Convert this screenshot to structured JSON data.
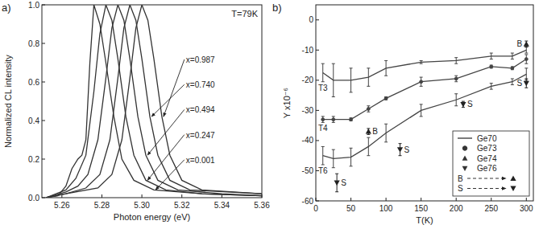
{
  "chart_data": [
    {
      "type": "line",
      "panel_label": "a)",
      "x_label": "Photon energy (eV)",
      "y_label": "Normalized CL intensity",
      "annotation": "T=79K",
      "xlim": [
        5.25,
        5.36
      ],
      "ylim": [
        0,
        1
      ],
      "xticks": [
        5.26,
        5.28,
        {
          "value": 5.3,
          "label": "5.30"
        },
        5.32,
        5.34,
        5.36
      ],
      "yticks": [
        {
          "value": 0,
          "label": "0.0"
        },
        0.2,
        0.4,
        0.6,
        0.8,
        {
          "value": 1,
          "label": "1.0"
        }
      ],
      "series": [
        {
          "name": "x=0.987",
          "color": "#333333",
          "line_style": "solid",
          "x": [
            5.252,
            5.262,
            5.278,
            5.285,
            5.29,
            5.294,
            5.297,
            5.3,
            5.303,
            5.306,
            5.31,
            5.314,
            5.32,
            5.33,
            5.36
          ],
          "values": [
            0.0,
            0.02,
            0.05,
            0.12,
            0.3,
            0.62,
            0.88,
            1.0,
            0.92,
            0.72,
            0.42,
            0.22,
            0.09,
            0.04,
            0.02
          ]
        },
        {
          "name": "x=0.740",
          "color": "#333333",
          "line_style": "solid",
          "x": [
            5.252,
            5.262,
            5.272,
            5.279,
            5.284,
            5.288,
            5.291,
            5.294,
            5.297,
            5.3,
            5.304,
            5.308,
            5.314,
            5.324,
            5.36
          ],
          "values": [
            0.0,
            0.02,
            0.05,
            0.12,
            0.3,
            0.62,
            0.88,
            1.0,
            0.92,
            0.72,
            0.42,
            0.22,
            0.09,
            0.04,
            0.02
          ]
        },
        {
          "name": "x=0.494",
          "color": "#333333",
          "line_style": "solid",
          "x": [
            5.252,
            5.262,
            5.268,
            5.273,
            5.278,
            5.282,
            5.285,
            5.288,
            5.291,
            5.294,
            5.298,
            5.302,
            5.308,
            5.318,
            5.34,
            5.36
          ],
          "values": [
            0.0,
            0.03,
            0.06,
            0.12,
            0.3,
            0.62,
            0.88,
            1.0,
            0.92,
            0.72,
            0.42,
            0.22,
            0.09,
            0.04,
            0.02,
            0.01
          ]
        },
        {
          "name": "x=0.247",
          "color": "#333333",
          "line_style": "solid",
          "x": [
            5.252,
            5.262,
            5.267,
            5.272,
            5.276,
            5.279,
            5.282,
            5.285,
            5.288,
            5.292,
            5.296,
            5.302,
            5.312,
            5.33,
            5.36
          ],
          "values": [
            0.0,
            0.04,
            0.1,
            0.22,
            0.55,
            0.85,
            1.0,
            0.92,
            0.72,
            0.42,
            0.22,
            0.09,
            0.04,
            0.02,
            0.01
          ]
        },
        {
          "name": "x=0.001",
          "color": "#333333",
          "line_style": "solid",
          "x": [
            5.252,
            5.258,
            5.262,
            5.265,
            5.268,
            5.27,
            5.272,
            5.274,
            5.276,
            5.279,
            5.282,
            5.286,
            5.29,
            5.296,
            5.306,
            5.33,
            5.36
          ],
          "values": [
            0.0,
            0.01,
            0.06,
            0.15,
            0.2,
            0.22,
            0.3,
            0.7,
            1.0,
            0.9,
            0.7,
            0.42,
            0.2,
            0.09,
            0.04,
            0.02,
            0.01
          ]
        }
      ]
    },
    {
      "type": "line",
      "panel_label": "b)",
      "x_label": "T(K)",
      "y_label": "Y x10⁻⁶",
      "xlim": [
        0,
        310
      ],
      "ylim": [
        -60,
        5
      ],
      "xticks": [
        0,
        50,
        100,
        150,
        200,
        250,
        300
      ],
      "yticks": [
        -60,
        -50,
        -40,
        -30,
        -20,
        -10,
        0
      ],
      "legend": "lower right",
      "legend_entries": [
        {
          "name": "Ge70",
          "marker": "line"
        },
        {
          "name": "Ge73",
          "marker": "circle"
        },
        {
          "name": "Ge74",
          "marker": "triangle-up"
        },
        {
          "name": "Ge76",
          "marker": "triangle-down"
        }
      ],
      "series": [
        {
          "name": "T3",
          "type": "line",
          "marker": "none",
          "line_style": "solid",
          "color": "#444444",
          "x": [
            10,
            25,
            50,
            75,
            100,
            150,
            200,
            250,
            280,
            300
          ],
          "values": [
            -17.5,
            -20,
            -20,
            -19,
            -16,
            -14,
            -13.5,
            -12,
            -12,
            -10
          ],
          "error": [
            3,
            5.5,
            4,
            3,
            2.5,
            0.5,
            1,
            1,
            1,
            1
          ]
        },
        {
          "name": "T4",
          "type": "line",
          "marker": "circle",
          "line_style": "solid",
          "color": "#444444",
          "x": [
            10,
            25,
            50,
            75,
            100,
            150,
            200,
            250,
            280,
            300
          ],
          "values": [
            -33,
            -33,
            -33,
            -29.5,
            -26,
            -20.5,
            -19.5,
            -15.5,
            -16,
            -13
          ],
          "error": [
            1,
            1,
            0.5,
            1,
            0.5,
            1.5,
            1,
            0.5,
            0.5,
            1.5
          ]
        },
        {
          "name": "T6",
          "type": "line",
          "marker": "none",
          "line_style": "solid",
          "color": "#444444",
          "x": [
            10,
            25,
            50,
            75,
            100,
            150,
            200,
            250,
            280,
            300
          ],
          "values": [
            -45,
            -46,
            -45.5,
            -42,
            -37.5,
            -30,
            -26.5,
            -22,
            -20.5,
            -18
          ],
          "error": [
            3,
            3,
            3,
            3,
            3,
            2,
            2,
            1,
            1,
            2
          ]
        },
        {
          "name": "B",
          "type": "scatter",
          "marker": "triangle-up",
          "line_style": "dashed",
          "color": "#222222",
          "x": [
            75,
            300
          ],
          "values": [
            -37,
            -8
          ],
          "error": [
            1,
            1
          ]
        },
        {
          "name": "S",
          "type": "scatter",
          "marker": "triangle-down",
          "line_style": "dashed",
          "color": "#222222",
          "x": [
            30,
            120,
            210,
            300
          ],
          "values": [
            -54,
            -43,
            -28,
            -21
          ],
          "error": [
            3,
            2,
            1,
            1.5
          ]
        }
      ]
    }
  ]
}
